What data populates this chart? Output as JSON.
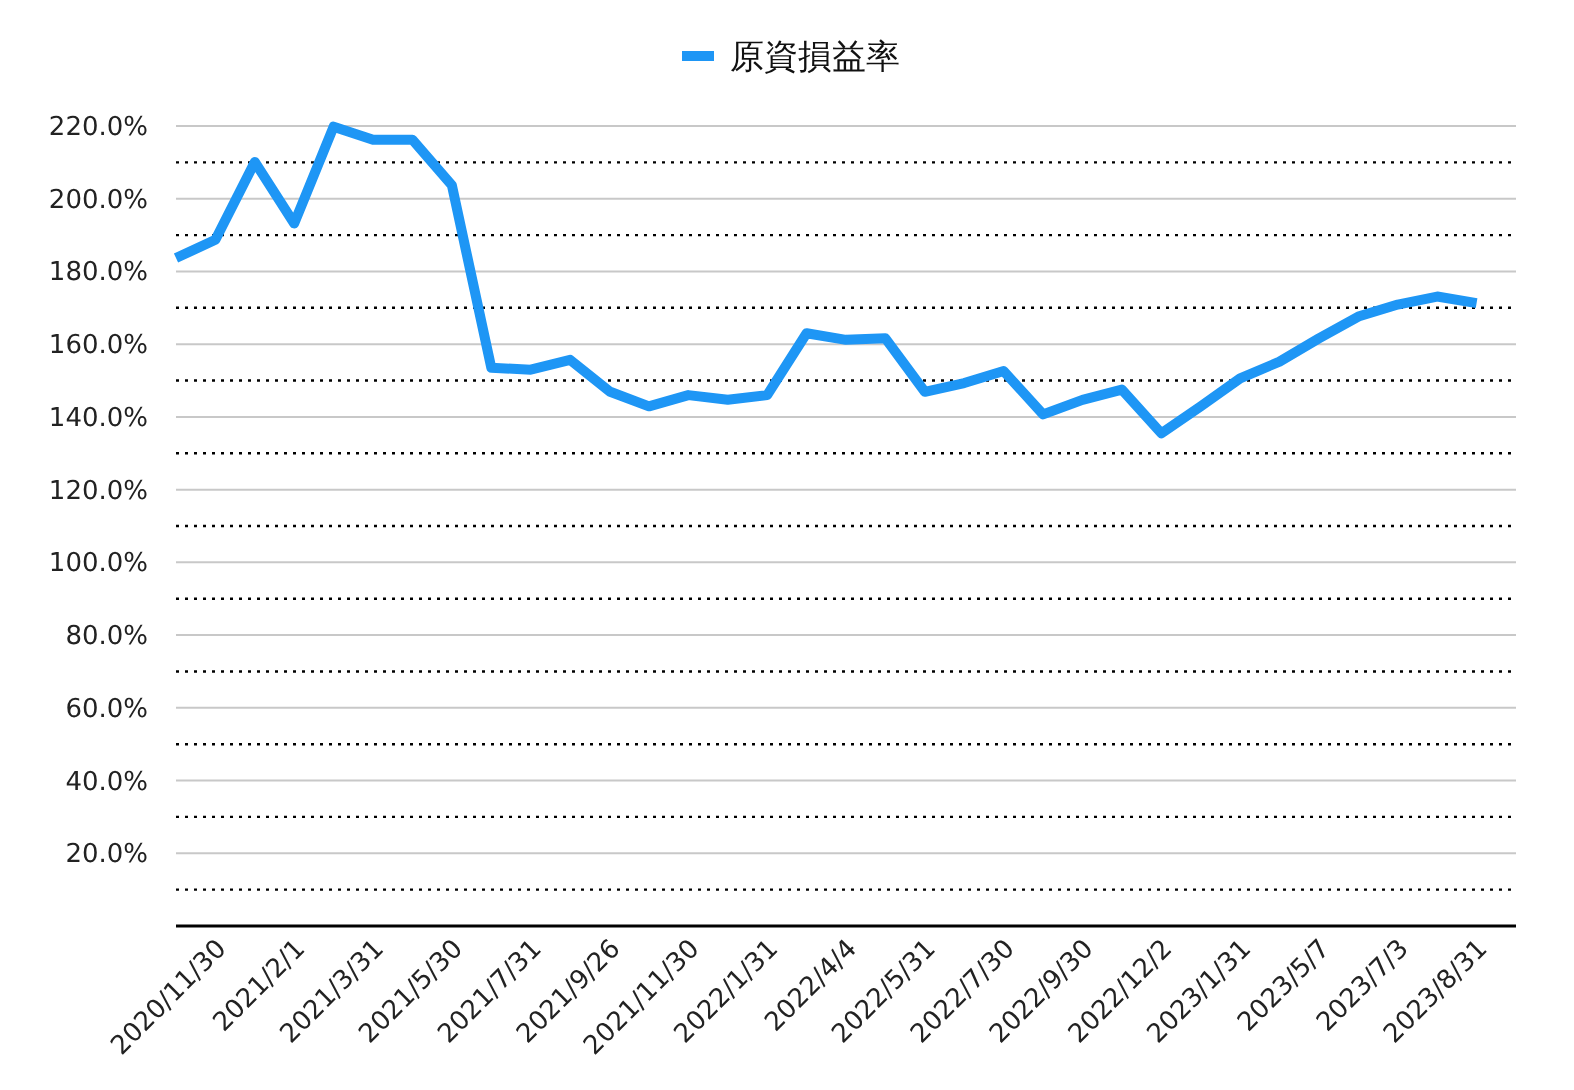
{
  "chart_data": {
    "type": "line",
    "legend": "top",
    "grid": "y",
    "marker": "none",
    "line_style": "solid",
    "categories": [
      null,
      "2020/11/30",
      null,
      "2021/2/1",
      null,
      "2021/3/31",
      null,
      "2021/5/30",
      null,
      "2021/7/31",
      null,
      "2021/9/26",
      null,
      "2021/11/30",
      null,
      "2022/1/31",
      null,
      "2022/4/4",
      null,
      "2022/5/31",
      null,
      "2022/7/30",
      null,
      "2022/9/30",
      null,
      "2022/12/2",
      null,
      "2023/1/31",
      null,
      "2023/5/7",
      null,
      "2023/7/3",
      null,
      "2023/8/31"
    ],
    "series": [
      {
        "name": "原資損益率",
        "color": "#1e96f5",
        "values": [
          183.7,
          188.7,
          210.1,
          193.2,
          219.8,
          216.2,
          216.2,
          203.7,
          153.5,
          153,
          155.7,
          147,
          142.9,
          146,
          144.7,
          146,
          163,
          161.2,
          161.6,
          146.9,
          149.3,
          152.6,
          140.7,
          144.7,
          147.5,
          135.5,
          142.9,
          150.6,
          155.2,
          161.6,
          167.6,
          170.9,
          173.1,
          171.3
        ]
      }
    ],
    "ylim": [
      0,
      220
    ],
    "yticks": [
      {
        "value": 10,
        "label": null
      },
      {
        "value": 20,
        "label": "20.0%"
      },
      {
        "value": 30,
        "label": null
      },
      {
        "value": 40,
        "label": "40.0%"
      },
      {
        "value": 50,
        "label": null
      },
      {
        "value": 60,
        "label": "60.0%"
      },
      {
        "value": 70,
        "label": null
      },
      {
        "value": 80,
        "label": "80.0%"
      },
      {
        "value": 90,
        "label": null
      },
      {
        "value": 100,
        "label": "100.0%"
      },
      {
        "value": 110,
        "label": null
      },
      {
        "value": 120,
        "label": "120.0%"
      },
      {
        "value": 130,
        "label": null
      },
      {
        "value": 140,
        "label": "140.0%"
      },
      {
        "value": 150,
        "label": null
      },
      {
        "value": 160,
        "label": "160.0%"
      },
      {
        "value": 170,
        "label": null
      },
      {
        "value": 180,
        "label": "180.0%"
      },
      {
        "value": 190,
        "label": null
      },
      {
        "value": 200,
        "label": "200.0%"
      },
      {
        "value": 210,
        "label": null
      },
      {
        "value": 220,
        "label": "220.0%"
      }
    ]
  }
}
